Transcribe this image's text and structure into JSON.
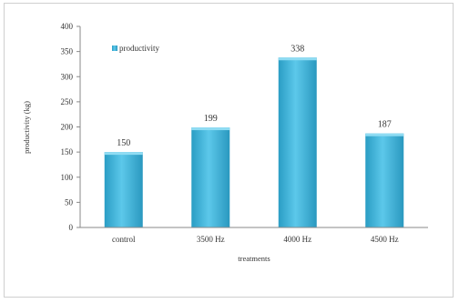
{
  "chart_data": {
    "type": "bar",
    "categories": [
      "control",
      "3500 Hz",
      "4000 Hz",
      "4500 Hz"
    ],
    "series": [
      {
        "name": "productivity",
        "values": [
          150,
          199,
          338,
          187
        ]
      }
    ],
    "data_labels": [
      "150",
      "199",
      "338",
      "187"
    ],
    "xlabel": "treatments",
    "ylabel": "productivity (kg)",
    "ylim": [
      0,
      400
    ],
    "yticks": [
      0,
      50,
      100,
      150,
      200,
      250,
      300,
      350,
      400
    ],
    "grid": false,
    "legend_position": "top-left",
    "bar_color": "#3fb4d9"
  }
}
